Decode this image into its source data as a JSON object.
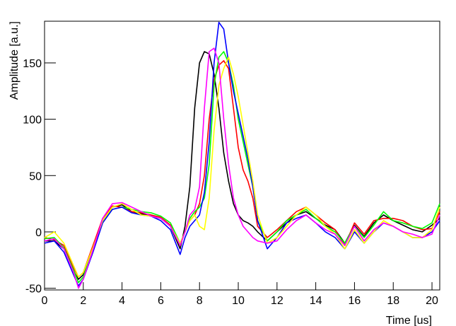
{
  "chart_data": {
    "type": "line",
    "x_label": "Time [us]",
    "y_label": "Amplitude [a.u.]",
    "x": [
      0,
      0.5,
      1,
      1.5,
      1.75,
      2,
      2.5,
      3,
      3.5,
      4,
      4.5,
      5,
      5.5,
      6,
      6.5,
      7,
      7.25,
      7.5,
      7.75,
      8,
      8.25,
      8.5,
      8.75,
      9,
      9.25,
      9.5,
      9.75,
      10,
      10.25,
      10.5,
      10.75,
      11,
      11.5,
      12,
      12.5,
      13,
      13.5,
      14,
      14.5,
      15,
      15.5,
      16,
      16.5,
      17,
      17.5,
      18,
      18.5,
      19,
      19.5,
      20,
      20.4
    ],
    "series": [
      {
        "color": "#000000",
        "values": [
          -8,
          -8,
          -15,
          -35,
          -42,
          -38,
          -15,
          10,
          22,
          24,
          18,
          16,
          15,
          12,
          5,
          -15,
          5,
          40,
          110,
          150,
          160,
          158,
          140,
          110,
          70,
          45,
          25,
          15,
          10,
          8,
          5,
          0,
          -8,
          0,
          8,
          15,
          18,
          12,
          6,
          2,
          -10,
          6,
          -4,
          8,
          15,
          10,
          6,
          2,
          0,
          6,
          12
        ]
      },
      {
        "color": "#ff0000",
        "values": [
          -5,
          -7,
          -12,
          -32,
          -40,
          -36,
          -12,
          12,
          23,
          22,
          18,
          17,
          15,
          13,
          6,
          -12,
          0,
          10,
          15,
          25,
          50,
          100,
          135,
          148,
          152,
          145,
          110,
          75,
          55,
          45,
          30,
          5,
          -5,
          2,
          10,
          18,
          22,
          15,
          8,
          2,
          -12,
          8,
          -2,
          10,
          12,
          12,
          10,
          5,
          2,
          3,
          18
        ]
      },
      {
        "color": "#00ff00",
        "values": [
          -6,
          -5,
          -14,
          -34,
          -45,
          -40,
          -14,
          8,
          20,
          22,
          20,
          18,
          17,
          14,
          8,
          -10,
          0,
          12,
          18,
          22,
          30,
          60,
          130,
          155,
          160,
          150,
          130,
          100,
          80,
          60,
          40,
          10,
          -8,
          0,
          10,
          15,
          20,
          12,
          5,
          0,
          -10,
          5,
          -5,
          6,
          18,
          10,
          8,
          5,
          3,
          8,
          25
        ]
      },
      {
        "color": "#0000ff",
        "values": [
          -10,
          -8,
          -18,
          -38,
          -48,
          -42,
          -18,
          8,
          20,
          22,
          17,
          15,
          14,
          10,
          2,
          -20,
          -5,
          5,
          10,
          15,
          35,
          80,
          150,
          186,
          180,
          150,
          125,
          105,
          85,
          65,
          40,
          10,
          -15,
          -5,
          8,
          12,
          15,
          8,
          0,
          -5,
          -15,
          0,
          -10,
          0,
          8,
          5,
          0,
          -5,
          -5,
          0,
          10
        ]
      },
      {
        "color": "#ffff00",
        "values": [
          -5,
          0,
          -10,
          -30,
          -40,
          -36,
          -14,
          10,
          22,
          25,
          20,
          15,
          14,
          12,
          5,
          -10,
          0,
          10,
          15,
          5,
          2,
          30,
          90,
          130,
          145,
          155,
          140,
          120,
          95,
          70,
          45,
          15,
          -10,
          -5,
          5,
          15,
          22,
          15,
          5,
          -2,
          -15,
          2,
          -10,
          0,
          10,
          5,
          0,
          -5,
          -5,
          2,
          22
        ]
      },
      {
        "color": "#ff00ff",
        "values": [
          -8,
          -6,
          -15,
          -36,
          -50,
          -42,
          -16,
          12,
          25,
          26,
          22,
          18,
          14,
          12,
          5,
          -12,
          0,
          15,
          20,
          40,
          110,
          160,
          163,
          150,
          100,
          60,
          30,
          15,
          5,
          0,
          -5,
          -8,
          -10,
          -8,
          2,
          10,
          15,
          8,
          2,
          -2,
          -12,
          5,
          -8,
          2,
          8,
          5,
          0,
          -2,
          -5,
          -2,
          15
        ]
      }
    ],
    "xlim": [
      0,
      20.4
    ],
    "ylim": [
      -51.5,
      187
    ],
    "xticks": [
      0,
      2,
      4,
      6,
      8,
      10,
      12,
      14,
      16,
      18,
      20
    ],
    "yticks": [
      -50,
      0,
      50,
      100,
      150
    ]
  }
}
